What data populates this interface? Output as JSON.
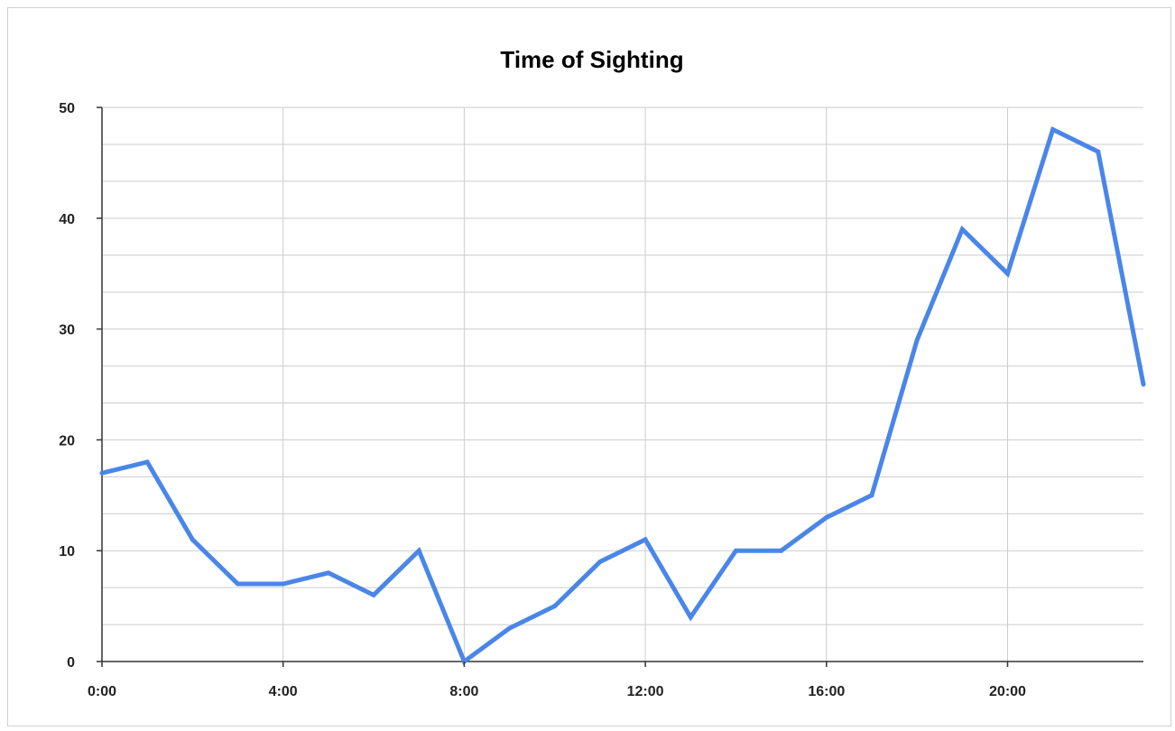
{
  "chart_data": {
    "type": "line",
    "title": "Time of Sighting",
    "xlabel": "",
    "ylabel": "",
    "x": [
      0,
      1,
      2,
      3,
      4,
      5,
      6,
      7,
      8,
      9,
      10,
      11,
      12,
      13,
      14,
      15,
      16,
      17,
      18,
      19,
      20,
      21,
      22,
      23
    ],
    "series": [
      {
        "values": [
          17,
          18,
          11,
          7,
          7,
          8,
          6,
          10,
          0,
          3,
          5,
          9,
          11,
          4,
          10,
          10,
          13,
          15,
          29,
          39,
          35,
          48,
          46,
          25
        ],
        "color": "#4a86e8"
      }
    ],
    "x_ticks": [
      {
        "value": 0,
        "label": "0:00"
      },
      {
        "value": 4,
        "label": "4:00"
      },
      {
        "value": 8,
        "label": "8:00"
      },
      {
        "value": 12,
        "label": "12:00"
      },
      {
        "value": 16,
        "label": "16:00"
      },
      {
        "value": 20,
        "label": "20:00"
      }
    ],
    "y_ticks": [
      0,
      10,
      20,
      30,
      40,
      50
    ],
    "xlim": [
      0,
      23
    ],
    "ylim": [
      0,
      50
    ],
    "y_minor_step": 3.333,
    "grid": true,
    "legend": "none",
    "grid_color": "#cccccc",
    "axis_color": "#333333"
  }
}
